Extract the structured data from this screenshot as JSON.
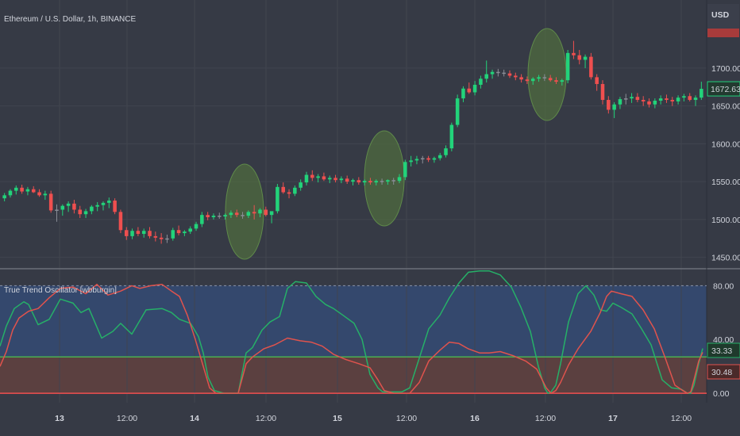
{
  "header": {
    "symbol_line": "Ethereum / U.S. Dollar, 1h, BINANCE",
    "currency": "USD"
  },
  "indicator": {
    "title": "True Trend Oscillator [wbburgin]"
  },
  "colors": {
    "background": "#363a45",
    "up": "#22d37a",
    "down": "#ef4f4f",
    "neutral": "#8a8d96",
    "green_line": "#26b068",
    "red_line": "#e0534d",
    "blue_zone": "#34486d",
    "red_zone": "#5b4040",
    "highlight": "#4f6b3f",
    "grid": "#41454f",
    "divider": "#6b6f79"
  },
  "chart_data": [
    {
      "type": "candlestick",
      "title": "Ethereum / U.S. Dollar, 1h, BINANCE",
      "ylim": [
        1436,
        1790
      ],
      "y_ticks": [
        "1700.00",
        "1650.00",
        "1600.00",
        "1550.00",
        "1500.00",
        "1450.00"
      ],
      "y_tick_values": [
        1700,
        1650,
        1600,
        1550,
        1500,
        1450
      ],
      "x_ticks": [
        "13",
        "12:00",
        "14",
        "12:00",
        "15",
        "12:00",
        "16",
        "12:00",
        "17",
        "12:00"
      ],
      "last_price": "1672.63",
      "candles": [
        [
          1528,
          1535,
          1524,
          1532
        ],
        [
          1532,
          1540,
          1529,
          1538
        ],
        [
          1538,
          1545,
          1533,
          1542
        ],
        [
          1542,
          1546,
          1534,
          1537
        ],
        [
          1537,
          1543,
          1532,
          1540
        ],
        [
          1540,
          1544,
          1535,
          1536
        ],
        [
          1536,
          1540,
          1530,
          1532
        ],
        [
          1532,
          1538,
          1526,
          1534
        ],
        [
          1534,
          1538,
          1509,
          1512
        ],
        [
          1512,
          1520,
          1497,
          1513
        ],
        [
          1513,
          1520,
          1505,
          1518
        ],
        [
          1518,
          1524,
          1510,
          1521
        ],
        [
          1521,
          1526,
          1508,
          1513
        ],
        [
          1513,
          1518,
          1502,
          1507
        ],
        [
          1507,
          1514,
          1502,
          1511
        ],
        [
          1511,
          1519,
          1507,
          1517
        ],
        [
          1517,
          1523,
          1511,
          1519
        ],
        [
          1519,
          1524,
          1512,
          1522
        ],
        [
          1522,
          1529,
          1515,
          1525
        ],
        [
          1525,
          1528,
          1507,
          1510
        ],
        [
          1510,
          1513,
          1482,
          1486
        ],
        [
          1486,
          1490,
          1473,
          1478
        ],
        [
          1478,
          1488,
          1474,
          1485
        ],
        [
          1485,
          1490,
          1478,
          1481
        ],
        [
          1481,
          1488,
          1476,
          1485
        ],
        [
          1485,
          1490,
          1475,
          1478
        ],
        [
          1478,
          1484,
          1471,
          1476
        ],
        [
          1476,
          1482,
          1468,
          1474
        ],
        [
          1474,
          1480,
          1469,
          1475
        ],
        [
          1475,
          1489,
          1472,
          1486
        ],
        [
          1486,
          1492,
          1479,
          1482
        ],
        [
          1482,
          1486,
          1478,
          1484
        ],
        [
          1484,
          1491,
          1481,
          1488
        ],
        [
          1488,
          1497,
          1485,
          1494
        ],
        [
          1494,
          1510,
          1490,
          1506
        ],
        [
          1506,
          1510,
          1499,
          1503
        ],
        [
          1503,
          1508,
          1500,
          1505
        ],
        [
          1505,
          1509,
          1501,
          1504
        ],
        [
          1504,
          1508,
          1500,
          1506
        ],
        [
          1506,
          1512,
          1502,
          1509
        ],
        [
          1509,
          1513,
          1503,
          1506
        ],
        [
          1506,
          1510,
          1501,
          1505
        ],
        [
          1505,
          1512,
          1502,
          1510
        ],
        [
          1510,
          1519,
          1500,
          1508
        ],
        [
          1508,
          1515,
          1503,
          1513
        ],
        [
          1513,
          1517,
          1504,
          1506
        ],
        [
          1506,
          1510,
          1495,
          1511
        ],
        [
          1511,
          1547,
          1508,
          1543
        ],
        [
          1543,
          1549,
          1534,
          1536
        ],
        [
          1536,
          1540,
          1528,
          1534
        ],
        [
          1534,
          1545,
          1531,
          1542
        ],
        [
          1542,
          1553,
          1538,
          1549
        ],
        [
          1549,
          1563,
          1545,
          1559
        ],
        [
          1559,
          1565,
          1551,
          1555
        ],
        [
          1555,
          1560,
          1549,
          1557
        ],
        [
          1557,
          1562,
          1551,
          1553
        ],
        [
          1553,
          1558,
          1548,
          1555
        ],
        [
          1555,
          1559,
          1549,
          1552
        ],
        [
          1552,
          1557,
          1548,
          1554
        ],
        [
          1554,
          1558,
          1547,
          1550
        ],
        [
          1550,
          1554,
          1545,
          1552
        ],
        [
          1552,
          1556,
          1546,
          1549
        ],
        [
          1549,
          1553,
          1545,
          1551
        ],
        [
          1551,
          1555,
          1546,
          1549
        ],
        [
          1549,
          1553,
          1545,
          1551
        ],
        [
          1551,
          1554,
          1546,
          1550
        ],
        [
          1550,
          1553,
          1546,
          1552
        ],
        [
          1552,
          1555,
          1546,
          1551
        ],
        [
          1551,
          1560,
          1548,
          1556
        ],
        [
          1556,
          1579,
          1552,
          1576
        ],
        [
          1576,
          1584,
          1570,
          1578
        ],
        [
          1578,
          1584,
          1573,
          1580
        ],
        [
          1580,
          1584,
          1574,
          1581
        ],
        [
          1581,
          1584,
          1576,
          1579
        ],
        [
          1579,
          1583,
          1575,
          1581
        ],
        [
          1581,
          1588,
          1578,
          1585
        ],
        [
          1585,
          1598,
          1582,
          1594
        ],
        [
          1594,
          1628,
          1590,
          1625
        ],
        [
          1625,
          1665,
          1622,
          1660
        ],
        [
          1660,
          1676,
          1655,
          1673
        ],
        [
          1673,
          1681,
          1666,
          1668
        ],
        [
          1668,
          1683,
          1664,
          1678
        ],
        [
          1678,
          1690,
          1673,
          1686
        ],
        [
          1686,
          1710,
          1681,
          1692
        ],
        [
          1692,
          1698,
          1686,
          1695
        ],
        [
          1695,
          1699,
          1689,
          1694
        ],
        [
          1694,
          1698,
          1689,
          1693
        ],
        [
          1693,
          1697,
          1687,
          1690
        ],
        [
          1690,
          1694,
          1684,
          1688
        ],
        [
          1688,
          1692,
          1681,
          1685
        ],
        [
          1685,
          1689,
          1679,
          1683
        ],
        [
          1683,
          1688,
          1678,
          1686
        ],
        [
          1686,
          1691,
          1682,
          1688
        ],
        [
          1688,
          1692,
          1683,
          1687
        ],
        [
          1687,
          1691,
          1682,
          1684
        ],
        [
          1684,
          1688,
          1679,
          1682
        ],
        [
          1682,
          1686,
          1677,
          1684
        ],
        [
          1684,
          1724,
          1680,
          1720
        ],
        [
          1720,
          1736,
          1712,
          1717
        ],
        [
          1717,
          1724,
          1705,
          1711
        ],
        [
          1711,
          1718,
          1700,
          1715
        ],
        [
          1715,
          1720,
          1685,
          1688
        ],
        [
          1688,
          1692,
          1670,
          1679
        ],
        [
          1679,
          1684,
          1652,
          1658
        ],
        [
          1658,
          1663,
          1640,
          1645
        ],
        [
          1645,
          1655,
          1634,
          1652
        ],
        [
          1652,
          1662,
          1646,
          1659
        ],
        [
          1659,
          1666,
          1652,
          1660
        ],
        [
          1660,
          1667,
          1654,
          1662
        ],
        [
          1662,
          1667,
          1655,
          1658
        ],
        [
          1658,
          1663,
          1650,
          1656
        ],
        [
          1656,
          1660,
          1648,
          1652
        ],
        [
          1652,
          1660,
          1647,
          1657
        ],
        [
          1657,
          1664,
          1652,
          1660
        ],
        [
          1660,
          1665,
          1654,
          1658
        ],
        [
          1658,
          1662,
          1650,
          1656
        ],
        [
          1656,
          1664,
          1652,
          1661
        ],
        [
          1661,
          1666,
          1656,
          1663
        ],
        [
          1663,
          1667,
          1656,
          1658
        ],
        [
          1658,
          1664,
          1650,
          1661
        ],
        [
          1661,
          1682,
          1658,
          1672.63
        ]
      ]
    },
    {
      "type": "line",
      "title": "True Trend Oscillator [wbburgin]",
      "ylim": [
        -7,
        92
      ],
      "y_ticks": [
        "80.00",
        "40.00",
        "0.00"
      ],
      "y_tick_values": [
        80,
        40,
        0
      ],
      "last_values": [
        "33.33",
        "30.48"
      ],
      "levels": [
        80,
        27,
        0
      ],
      "series": [
        {
          "x": [
            0,
            8,
            18,
            30,
            36,
            48,
            62,
            76,
            92,
            102,
            112,
            128,
            142,
            152,
            166,
            184,
            204,
            216,
            226,
            240,
            250,
            256,
            262,
            270,
            282,
            292,
            300,
            310,
            318,
            330,
            340,
            352,
            362,
            372,
            386,
            398,
            410,
            420,
            432,
            446,
            456,
            466,
            476,
            482,
            488,
            494,
            506,
            516,
            528,
            540,
            554,
            566,
            578,
            590,
            604,
            616,
            630,
            644,
            656,
            668,
            678,
            686,
            690,
            694,
            700,
            706,
            716,
            728,
            738,
            748,
            756,
            764,
            772,
            782,
            796,
            808,
            820,
            834,
            846,
            858,
            866,
            870,
            874,
            880,
            885
          ],
          "y": [
            35,
            50,
            63,
            68,
            66,
            51,
            55,
            70,
            67,
            60,
            63,
            41,
            46,
            52,
            44,
            62,
            63,
            60,
            55,
            52,
            42,
            30,
            12,
            2,
            0,
            0,
            0,
            30,
            34,
            47,
            53,
            57,
            78,
            83,
            82,
            72,
            66,
            63,
            58,
            52,
            40,
            14,
            4,
            1,
            1,
            1,
            1,
            4,
            26,
            48,
            58,
            71,
            82,
            90,
            91,
            91,
            88,
            79,
            64,
            46,
            20,
            4,
            0,
            1,
            6,
            22,
            53,
            74,
            80,
            73,
            62,
            61,
            67,
            64,
            59,
            48,
            36,
            10,
            4,
            3,
            0,
            0,
            6,
            22,
            33.33
          ]
        },
        {
          "x": [
            0,
            8,
            16,
            24,
            36,
            48,
            62,
            76,
            92,
            108,
            122,
            136,
            152,
            166,
            176,
            190,
            204,
            216,
            226,
            236,
            246,
            256,
            264,
            272,
            282,
            292,
            300,
            310,
            318,
            332,
            346,
            362,
            378,
            392,
            406,
            420,
            436,
            452,
            466,
            476,
            484,
            490,
            496,
            506,
            516,
            528,
            540,
            554,
            566,
            578,
            590,
            604,
            616,
            630,
            646,
            662,
            676,
            688,
            694,
            700,
            706,
            716,
            728,
            744,
            756,
            764,
            770,
            782,
            796,
            810,
            824,
            838,
            850,
            860,
            866,
            870,
            874,
            880,
            885
          ],
          "y": [
            20,
            31,
            47,
            56,
            61,
            63,
            71,
            78,
            79,
            74,
            81,
            73,
            76,
            80,
            78,
            80,
            81,
            76,
            72,
            58,
            40,
            20,
            4,
            0,
            0,
            0,
            0,
            22,
            27,
            33,
            36,
            41,
            39,
            38,
            35,
            29,
            25,
            22,
            19,
            10,
            2,
            1,
            0,
            0,
            0,
            8,
            24,
            32,
            38,
            37,
            33,
            30,
            30,
            31,
            28,
            24,
            18,
            4,
            0,
            2,
            8,
            21,
            33,
            46,
            60,
            72,
            76,
            74,
            72,
            62,
            48,
            26,
            6,
            2,
            0,
            1,
            10,
            24,
            30.48
          ]
        }
      ]
    }
  ]
}
